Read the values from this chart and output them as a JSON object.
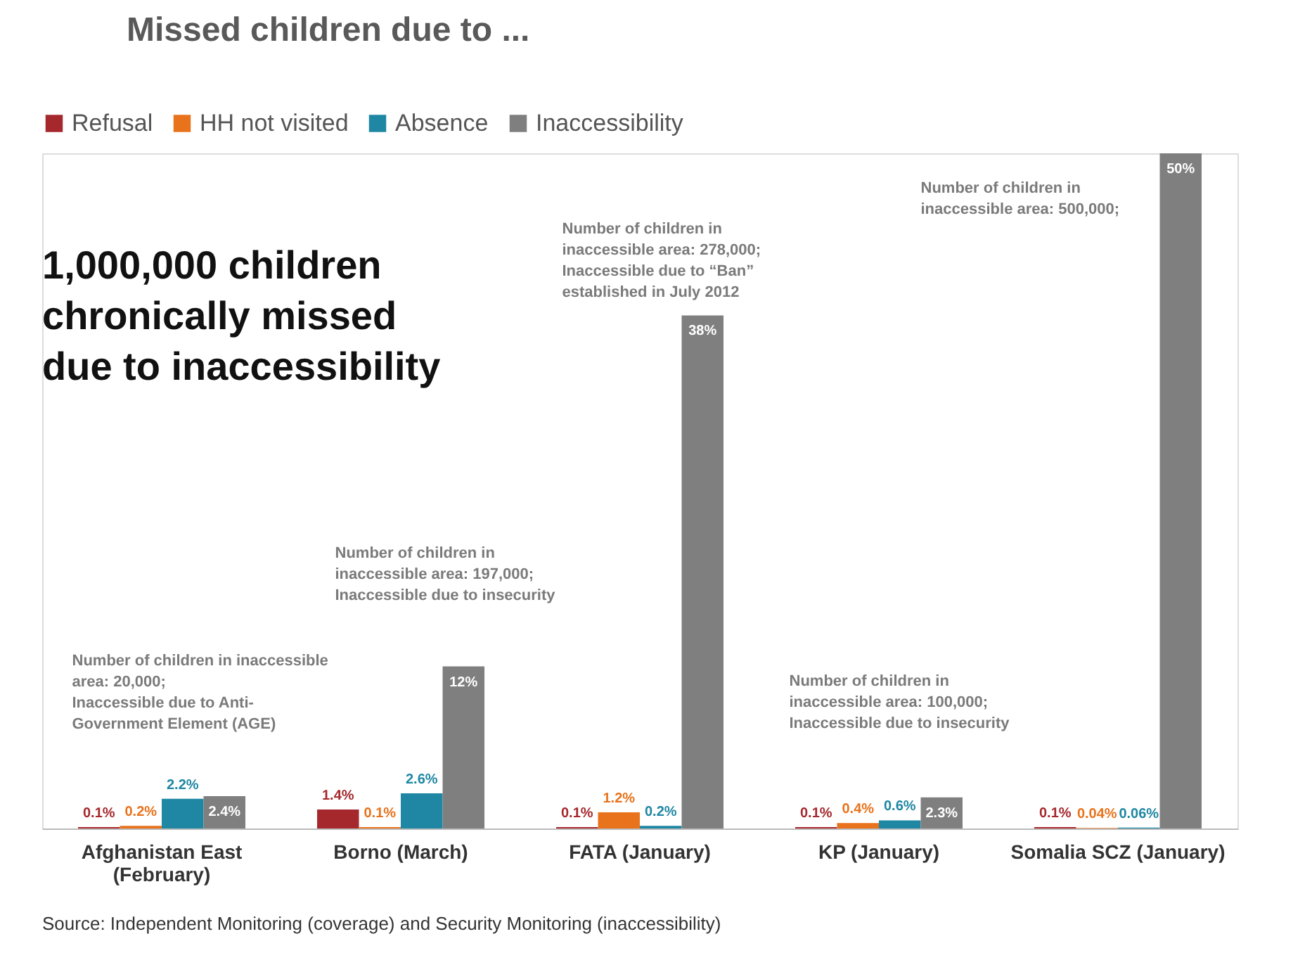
{
  "chart_data": {
    "type": "bar",
    "title": "Missed children due to ...",
    "categories": [
      "Afghanistan East\n(February)",
      "Borno (March)",
      "FATA (January)",
      "KP (January)",
      "Somalia SCZ (January)"
    ],
    "series": [
      {
        "name": "Refusal",
        "color": "#a5282d",
        "values": [
          0.1,
          1.4,
          0.1,
          0.1,
          0.1
        ],
        "value_labels": [
          "0.1%",
          "1.4%",
          "0.1%",
          "0.1%",
          "0.1%"
        ]
      },
      {
        "name": "HH not visited",
        "color": "#e8731c",
        "values": [
          0.2,
          0.1,
          1.2,
          0.4,
          0.04
        ],
        "value_labels": [
          "0.2%",
          "0.1%",
          "1.2%",
          "0.4%",
          "0.04%"
        ]
      },
      {
        "name": "Absence",
        "color": "#1f87a3",
        "values": [
          2.2,
          2.6,
          0.2,
          0.6,
          0.06
        ],
        "value_labels": [
          "2.2%",
          "2.6%",
          "0.2%",
          "0.6%",
          "0.06%"
        ]
      },
      {
        "name": "Inaccessibility",
        "color": "#7f7f7f",
        "values": [
          2.4,
          12,
          38,
          2.3,
          50
        ],
        "value_labels": [
          "2.4%",
          "12%",
          "38%",
          "2.3%",
          "50%"
        ]
      }
    ],
    "legend": "top left",
    "grid": false,
    "annotations": [
      "1,000,000 children\nchronically missed\ndue to inaccessibility",
      "Number of children in inaccessible\narea: 20,000;\nInaccessible due to Anti-\nGovernment Element (AGE)",
      "Number of children in\ninaccessible area: 197,000;\nInaccessible due to insecurity",
      "Number of children in\ninaccessible area: 278,000;\nInaccessible due to “Ban”\nestablished in July 2012",
      "Number of children in\ninaccessible area: 100,000;\nInaccessible due to insecurity",
      "Number of children in\ninaccessible area: 500,000;",
      "Source: Independent Monitoring (coverage) and Security Monitoring (inaccessibility)"
    ]
  }
}
